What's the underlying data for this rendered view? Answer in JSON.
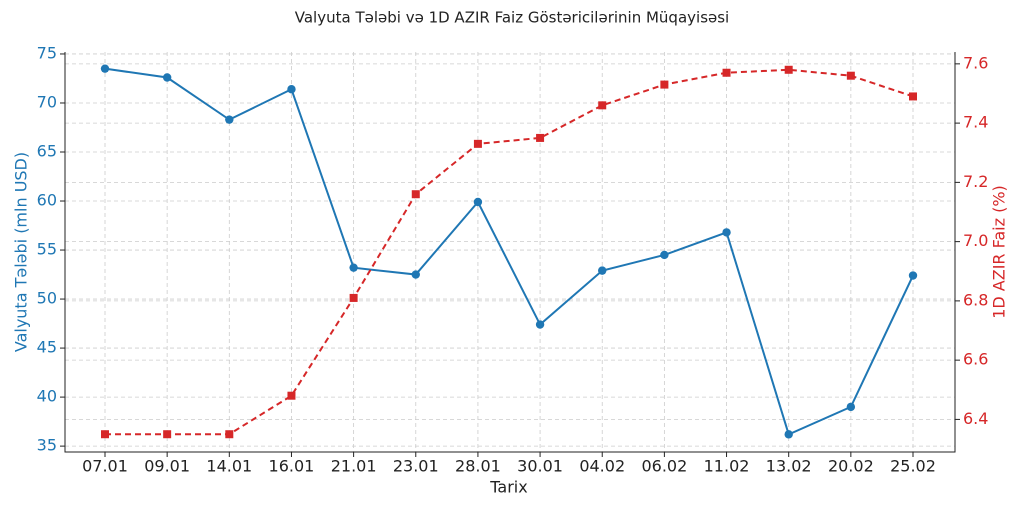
{
  "chart_data": {
    "type": "line",
    "title": "Valyuta Tələbi və 1D AZIR Faiz Göstəricilərinin Müqayisəsi",
    "x_label": "Tarix",
    "y_label": "Valyuta Tələbi (mln USD)",
    "y2_label": "1D AZIR Faiz (%)",
    "categories": [
      "07.01",
      "09.01",
      "14.01",
      "16.01",
      "21.01",
      "23.01",
      "28.01",
      "30.01",
      "04.02",
      "06.02",
      "11.02",
      "13.02",
      "20.02",
      "25.02"
    ],
    "series": [
      {
        "name": "Valyuta Tələbi (mln USD)",
        "color": "#1f77b4",
        "values": [
          73.5,
          72.6,
          68.3,
          71.4,
          53.2,
          52.5,
          59.9,
          47.4,
          52.9,
          54.5,
          56.8,
          36.2,
          39.0,
          52.4
        ]
      },
      {
        "name": "1D AZIR Faiz (%)",
        "color": "#d62728",
        "axis": "y2",
        "values": [
          6.35,
          6.35,
          6.35,
          6.48,
          6.81,
          7.16,
          7.33,
          7.35,
          7.46,
          7.53,
          7.57,
          7.58,
          7.56,
          7.49
        ]
      }
    ],
    "ylim": [
      34.4,
      75.2
    ],
    "yticks": [
      35,
      40,
      45,
      50,
      55,
      60,
      65,
      70,
      75
    ],
    "y2lim": [
      6.29,
      7.64
    ],
    "y2ticks": [
      6.4,
      6.6,
      6.8,
      {
        "value": 7,
        "label": "7.0"
      },
      7.2,
      7.4,
      7.6
    ],
    "grid": true
  }
}
